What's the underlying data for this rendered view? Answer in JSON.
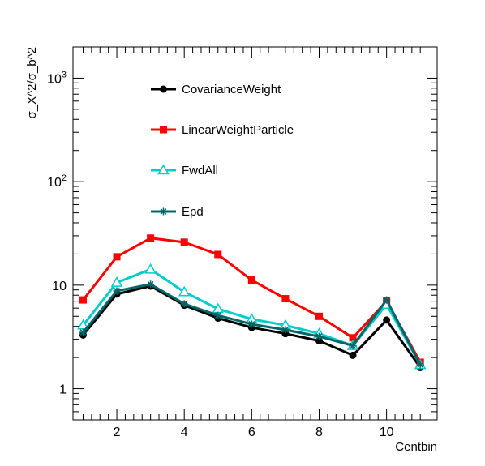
{
  "chart_data": {
    "type": "line",
    "xlabel": "Centbin",
    "ylabel": "σ_X^2/σ_b^2",
    "yscale": "log",
    "xlim": [
      0.7,
      11.5
    ],
    "ylim": [
      0.5,
      2000
    ],
    "x_ticks": [
      2,
      4,
      6,
      8,
      10
    ],
    "x_tick_labels": [
      "2",
      "4",
      "6",
      "8",
      "10"
    ],
    "y_ticks": [
      1,
      10,
      100,
      1000
    ],
    "y_tick_labels": [
      {
        "base": "1",
        "exp": ""
      },
      {
        "base": "10",
        "exp": ""
      },
      {
        "base": "10",
        "exp": "2"
      },
      {
        "base": "10",
        "exp": "3"
      }
    ],
    "grid": false,
    "legend_position": "upper-left inside plot",
    "x": [
      1,
      2,
      3,
      4,
      5,
      6,
      7,
      8,
      9,
      10,
      11
    ],
    "series": [
      {
        "name": "CovarianceWeight",
        "color": "#000000",
        "marker": "circle",
        "values": [
          3.3,
          8.2,
          9.8,
          6.4,
          4.8,
          3.9,
          3.4,
          2.9,
          2.1,
          4.6,
          1.6
        ]
      },
      {
        "name": "LinearWeightParticle",
        "color": "#ff0000",
        "marker": "square",
        "values": [
          7.2,
          18.8,
          28.5,
          26.0,
          19.8,
          11.2,
          7.4,
          5.0,
          3.1,
          7.0,
          1.8
        ]
      },
      {
        "name": "FwdAll",
        "color": "#00cccc",
        "marker": "triangle-open",
        "values": [
          4.1,
          10.6,
          14.2,
          8.6,
          5.9,
          4.7,
          4.1,
          3.4,
          2.6,
          6.5,
          1.7
        ]
      },
      {
        "name": "Epd",
        "color": "#006666",
        "marker": "star",
        "values": [
          3.5,
          8.8,
          10.2,
          6.6,
          5.1,
          4.2,
          3.7,
          3.2,
          2.6,
          7.2,
          1.7
        ]
      }
    ]
  }
}
